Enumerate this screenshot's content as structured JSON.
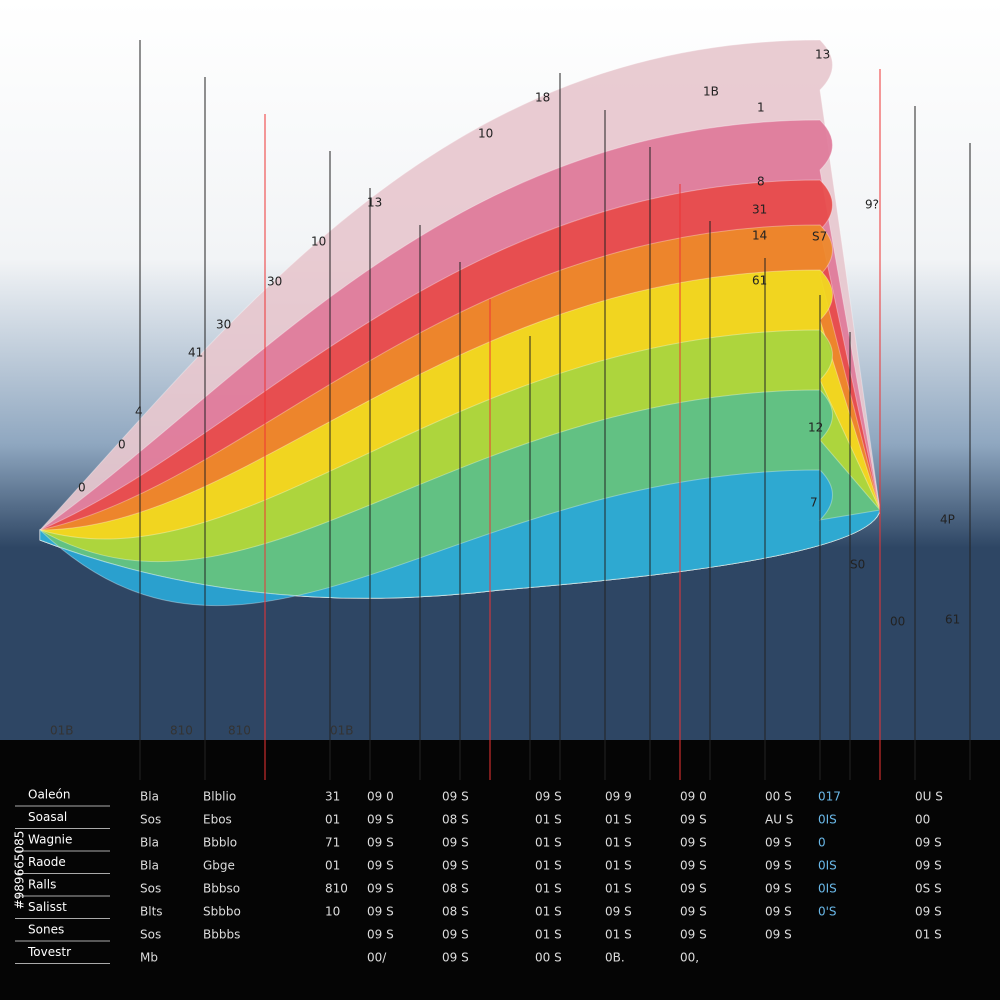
{
  "top_labels": [
    "18",
    "10",
    "13",
    "10",
    "30",
    "30",
    "41",
    "4",
    "0",
    "0"
  ],
  "right_labels": [
    "13",
    "1B",
    "1",
    "8",
    "31",
    "14",
    "61",
    "S7",
    "9?",
    "12",
    "7",
    "4P",
    "61",
    "S0",
    "00"
  ],
  "axis_labels": [
    "01B",
    "810",
    "810",
    "01B"
  ],
  "legend_items": [
    "Oaleón",
    "Soasal",
    "Wagnie",
    "Raode",
    "Ralls",
    "Salisst",
    "Sones",
    "Tovestr"
  ],
  "table": {
    "columns": [
      [
        "Bla",
        "Sos",
        "Bla",
        "Bla",
        "Sos",
        "Blts",
        "Sos",
        "Mb"
      ],
      [
        "Blblio",
        "Ebos",
        "Bbblo",
        "Gbge",
        "Bbbso",
        "Sbbbo",
        "Bbbbs"
      ],
      [
        "31",
        "01",
        "71",
        "01",
        "810",
        "10"
      ],
      [
        "09 0",
        "09 S",
        "09 S",
        "09 S",
        "09 S",
        "09 S",
        "09 S",
        "00/"
      ],
      [
        "09 S",
        "08 S",
        "09 S",
        "09 S",
        "08 S",
        "08 S",
        "09 S",
        "09 S"
      ],
      [
        "09 S",
        "01 S",
        "01 S",
        "01 S",
        "01 S",
        "01 S",
        "01 S",
        "00 S"
      ],
      [
        "09 9",
        "01 S",
        "01 S",
        "01 S",
        "01 S",
        "09 S",
        "01 S",
        "0B."
      ],
      [
        "09 0",
        "09 S",
        "09 S",
        "09 S",
        "09 S",
        "09 S",
        "09 S",
        "00,"
      ],
      [
        "00 S",
        "AU S",
        "09 S",
        "09 S",
        "09 S",
        "09 S",
        "09 S"
      ],
      [
        "017",
        "0IS",
        "0",
        "0IS",
        "0IS",
        "0'S"
      ],
      [
        "0U S",
        "00",
        "09 S",
        "09 S",
        "0S S",
        "09 S",
        "01 S"
      ]
    ]
  },
  "watermark": "#989665085"
}
